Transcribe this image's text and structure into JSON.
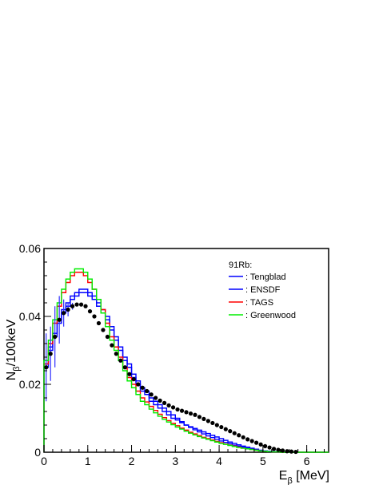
{
  "chart_data": {
    "type": "line",
    "title": "",
    "xlabel_main": "E",
    "xlabel_sub": "β",
    "xlabel_unit": " [MeV]",
    "ylabel_main": "N",
    "ylabel_sub": "β",
    "ylabel_unit": "/100keV",
    "xlim": [
      0,
      6.5
    ],
    "ylim": [
      0,
      0.06
    ],
    "x_ticks": [
      0,
      1,
      2,
      3,
      4,
      5,
      6
    ],
    "x_tick_labels": [
      "0",
      "1",
      "2",
      "3",
      "4",
      "5",
      "6"
    ],
    "y_ticks": [
      0,
      0.02,
      0.04,
      0.06
    ],
    "y_tick_labels": [
      "0",
      "0.02",
      "0.04",
      "0.06"
    ],
    "grid": false,
    "legend_placement": "top-right",
    "legend_header": "91Rb:",
    "bin_width": 0.1,
    "series": [
      {
        "name": ": Tengblad",
        "color": "#0000ff",
        "style": "histogram",
        "values": [
          0.026,
          0.031,
          0.035,
          0.039,
          0.042,
          0.044,
          0.046,
          0.047,
          0.048,
          0.048,
          0.047,
          0.046,
          0.044,
          0.042,
          0.04,
          0.037,
          0.034,
          0.031,
          0.028,
          0.026,
          0.023,
          0.021,
          0.019,
          0.018,
          0.016,
          0.015,
          0.014,
          0.013,
          0.012,
          0.011,
          0.01,
          0.009,
          0.008,
          0.0075,
          0.007,
          0.0065,
          0.006,
          0.0055,
          0.005,
          0.0045,
          0.004,
          0.0035,
          0.003,
          0.0026,
          0.0022,
          0.0018,
          0.0015,
          0.0012,
          0.0009,
          0.0006,
          0.0004,
          0.0003,
          0.0002,
          0.0001,
          0.0001,
          0,
          0,
          0,
          0,
          0,
          0,
          0,
          0,
          0,
          0
        ]
      },
      {
        "name": ": ENSDF",
        "color": "#0000ff",
        "style": "histogram",
        "values": [
          0.025,
          0.03,
          0.034,
          0.038,
          0.041,
          0.043,
          0.045,
          0.046,
          0.047,
          0.047,
          0.046,
          0.045,
          0.043,
          0.041,
          0.039,
          0.036,
          0.033,
          0.03,
          0.027,
          0.025,
          0.022,
          0.02,
          0.018,
          0.017,
          0.015,
          0.014,
          0.013,
          0.012,
          0.011,
          0.01,
          0.0095,
          0.0087,
          0.008,
          0.0073,
          0.0066,
          0.006,
          0.0054,
          0.0048,
          0.0043,
          0.0038,
          0.0033,
          0.0029,
          0.0025,
          0.0021,
          0.0018,
          0.0015,
          0.0012,
          0.0009,
          0.0007,
          0.0005,
          0.0003,
          0.0002,
          0.0001,
          0.0001,
          0,
          0,
          0,
          0,
          0,
          0,
          0,
          0,
          0,
          0,
          0
        ]
      },
      {
        "name": ": TAGS",
        "color": "#ff0000",
        "style": "histogram",
        "values": [
          0.026,
          0.032,
          0.038,
          0.043,
          0.047,
          0.05,
          0.052,
          0.053,
          0.053,
          0.052,
          0.05,
          0.048,
          0.045,
          0.042,
          0.038,
          0.034,
          0.031,
          0.028,
          0.025,
          0.022,
          0.02,
          0.018,
          0.016,
          0.0148,
          0.0135,
          0.0123,
          0.0112,
          0.0102,
          0.0093,
          0.0085,
          0.0078,
          0.0071,
          0.0065,
          0.0059,
          0.0054,
          0.0049,
          0.0044,
          0.004,
          0.0036,
          0.0032,
          0.0028,
          0.0024,
          0.0021,
          0.0018,
          0.0015,
          0.0012,
          0.001,
          0.0008,
          0.0006,
          0.0004,
          0.0003,
          0.0002,
          0.0001,
          0.0001,
          0,
          0,
          0,
          0,
          0,
          0,
          0,
          0,
          0,
          0,
          0
        ]
      },
      {
        "name": ": Greenwood",
        "color": "#00ee00",
        "style": "histogram",
        "values": [
          0.027,
          0.033,
          0.039,
          0.044,
          0.048,
          0.051,
          0.053,
          0.054,
          0.054,
          0.053,
          0.051,
          0.048,
          0.045,
          0.041,
          0.037,
          0.033,
          0.03,
          0.027,
          0.024,
          0.021,
          0.019,
          0.017,
          0.015,
          0.014,
          0.0127,
          0.0116,
          0.0106,
          0.0097,
          0.0089,
          0.0081,
          0.0074,
          0.0068,
          0.0062,
          0.0056,
          0.0051,
          0.0046,
          0.0042,
          0.0038,
          0.0034,
          0.003,
          0.0026,
          0.0023,
          0.002,
          0.0017,
          0.0014,
          0.0012,
          0.001,
          0.0008,
          0.0006,
          0.0004,
          0.0003,
          0.0002,
          0.0001,
          0.0001,
          0,
          0,
          0,
          0,
          0,
          0,
          0,
          0,
          0,
          0,
          0
        ]
      }
    ],
    "data_points": {
      "color": "#000000",
      "x": [
        0.05,
        0.15,
        0.25,
        0.35,
        0.45,
        0.55,
        0.65,
        0.75,
        0.85,
        0.95,
        1.05,
        1.15,
        1.25,
        1.35,
        1.45,
        1.55,
        1.65,
        1.75,
        1.85,
        1.95,
        2.05,
        2.15,
        2.25,
        2.35,
        2.45,
        2.55,
        2.65,
        2.75,
        2.85,
        2.95,
        3.05,
        3.15,
        3.25,
        3.35,
        3.45,
        3.55,
        3.65,
        3.75,
        3.85,
        3.95,
        4.05,
        4.15,
        4.25,
        4.35,
        4.45,
        4.55,
        4.65,
        4.75,
        4.85,
        4.95,
        5.05,
        5.15,
        5.25,
        5.35,
        5.45,
        5.55,
        5.65,
        5.75
      ],
      "y": [
        0.025,
        0.029,
        0.034,
        0.039,
        0.041,
        0.042,
        0.043,
        0.0435,
        0.0435,
        0.043,
        0.0415,
        0.04,
        0.038,
        0.036,
        0.034,
        0.0315,
        0.029,
        0.027,
        0.025,
        0.023,
        0.0215,
        0.02,
        0.019,
        0.018,
        0.017,
        0.016,
        0.0152,
        0.0145,
        0.0138,
        0.0132,
        0.0126,
        0.0122,
        0.0118,
        0.0114,
        0.011,
        0.0104,
        0.0098,
        0.0092,
        0.0086,
        0.008,
        0.0074,
        0.0068,
        0.0062,
        0.0056,
        0.005,
        0.0044,
        0.0038,
        0.0033,
        0.0028,
        0.0023,
        0.0018,
        0.0014,
        0.001,
        0.0007,
        0.0005,
        0.0003,
        0.0002,
        0.0001
      ],
      "yerr": [
        0.01,
        0.008,
        0.009,
        0.007,
        0.004,
        0.002,
        0.001,
        0.0005,
        0.0005,
        0.0005,
        0.0005,
        0.0005,
        0.0005,
        0.0005,
        0.0005,
        0.0005,
        0.0005,
        0.0005,
        0.0005,
        0.0005,
        0.0005,
        0.0005,
        0.0005,
        0.0005,
        0.0005,
        0.0005,
        0.0005,
        0.0005,
        0.0005,
        0.0005,
        0.0005,
        0.0005,
        0.0005,
        0.0005,
        0.0005,
        0.0005,
        0.0005,
        0.0005,
        0.0005,
        0.0005,
        0.0005,
        0.0005,
        0.0005,
        0.0005,
        0.0005,
        0.0005,
        0.0005,
        0.0005,
        0.0005,
        0.0005,
        0.0005,
        0.0005,
        0.0005,
        0.0005,
        0.0005,
        0.0005,
        0.0005,
        0.0005
      ]
    }
  }
}
